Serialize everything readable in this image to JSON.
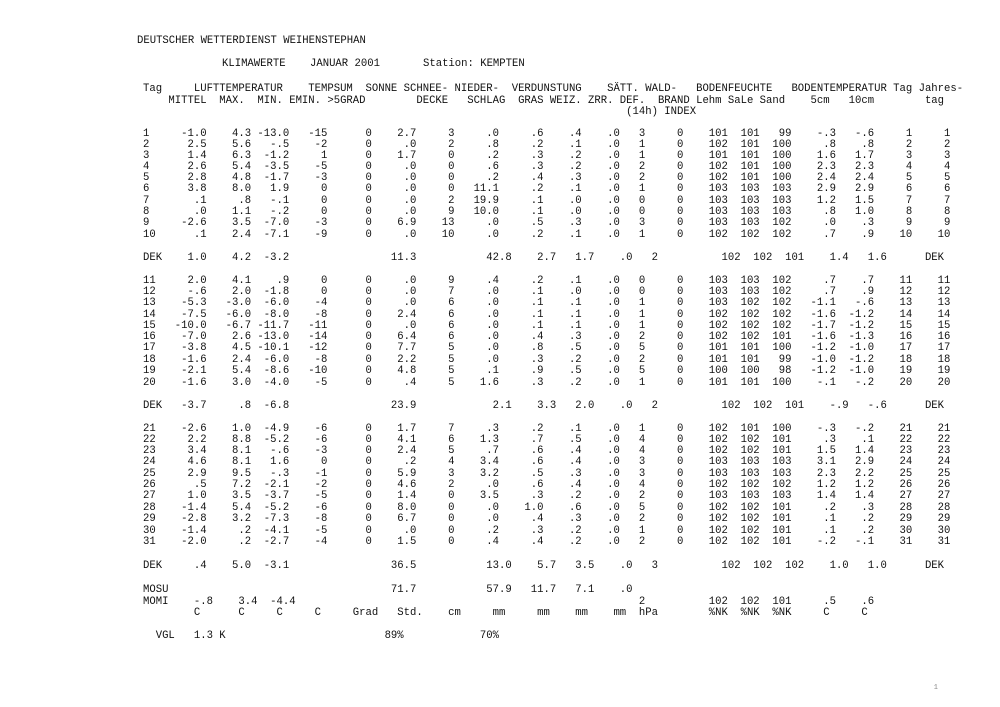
{
  "header": {
    "title": "DEUTSCHER WETTERDIENST WEIHENSTEPHAN",
    "subtitle": "KLIMAWERTE",
    "month": "JANUAR 2001",
    "station": "Station: KEMPTEN"
  },
  "table": {
    "header_rows": [
      "Tag     LUFTTEMPERATUR    TEMPSUM  SONNE SCHNEE- NIEDER-  VERDUNSTUNG    SÄTT. WALD-   BODENFEUCHTE   BODENTEMPERATUR Tag Jahres-",
      "    MITTEL  MAX.  MIN. EMIN. >5GRAD        DECKE   SCHLAG  GRAS WEIZ. ZRR. DEF.  BRAND Lehm SaLe Sand    5cm   10cm        tag",
      "                                                                            (14h) INDEX"
    ],
    "dekade1": [
      "1     -1.0    4.3 -13.0   -15      0    2.7     3     .0     .6    .4    .0   3     0    101  101   99    -.3   -.6     1     1",
      "2      2.5    5.6   -.5    -2      0     .0     2     .8     .2    .1    .0   1     0    102  101  100     .8    .8     2     2",
      "3      1.4    6.3  -1.2     1      0    1.7     0     .2     .3    .2    .0   1     0    101  101  100    1.6   1.7     3     3",
      "4      2.6    5.4  -3.5    -5      0     .0     0     .6     .3    .2    .0   2     0    102  101  100    2.3   2.3     4     4",
      "5      2.8    4.8  -1.7    -3      0     .0     0     .2     .4    .3    .0   2     0    102  101  100    2.4   2.4     5     5",
      "6      3.8    8.0   1.9     0      0     .0     0   11.1     .2    .1    .0   1     0    103  103  103    2.9   2.9     6     6",
      "7       .1     .8   -.1     0      0     .0     2   19.9     .1    .0    .0   0     0    103  103  103    1.2   1.5     7     7",
      "8       .0    1.1   -.2     0      0     .0     9   10.0     .1    .0    .0   0     0    103  103  103     .8   1.0     8     8",
      "9     -2.6    3.5  -7.0    -3      0    6.9    13     .0     .5    .3    .0   3     0    103  103  102     .0    .3     9     9",
      "10      .1    2.4  -7.1    -9      0     .0    10     .0     .2    .1    .0   1     0    102  102  102     .7    .9    10    10"
    ],
    "dek1": "DEK    1.0    4.2  -3.2                11.3           42.8    2.7   1.7    .0   2          102  102  101    1.4   1.6      DEK",
    "dekade2": [
      "11     2.0    4.1    .9     0      0     .0     9     .4     .2    .1    .0   0     0    103  103  102     .7    .7    11    11",
      "12     -.6    2.0  -1.8     0      0     .0     7     .0     .1    .0    .0   0     0    103  103  102     .7    .9    12    12",
      "13    -5.3   -3.0  -6.0    -4      0     .0     6     .0     .1    .1    .0   1     0    103  102  102   -1.1   -.6    13    13",
      "14    -7.5   -6.0  -8.0    -8      0    2.4     6     .0     .1    .1    .0   1     0    102  102  102   -1.6  -1.2    14    14",
      "15   -10.0   -6.7 -11.7   -11      0     .0     6     .0     .1    .1    .0   1     0    102  102  102   -1.7  -1.2    15    15",
      "16    -7.0    2.6 -13.0   -14      0    6.4     6     .0     .4    .3    .0   2     0    102  102  101   -1.6  -1.3    16    16",
      "17    -3.8    4.5 -10.1   -12      0    7.7     5     .0     .8    .5    .0   5     0    101  101  100   -1.2  -1.0    17    17",
      "18    -1.6    2.4  -6.0    -8      0    2.2     5     .0     .3    .2    .0   2     0    101  101   99   -1.0  -1.2    18    18",
      "19    -2.1    5.4  -8.6   -10      0    4.8     5     .1     .9    .5    .0   5     0    100  100   98   -1.2  -1.0    19    19",
      "20    -1.6    3.0  -4.0    -5      0     .4     5    1.6     .3    .2    .0   1     0    101  101  100    -.1   -.2    20    20"
    ],
    "dek2": "DEK   -3.7     .8  -6.8                23.9            2.1    3.3   2.0    .0   2          102  102  101    -.9   -.6      DEK",
    "dekade3": [
      "21    -2.6    1.0  -4.9    -6      0    1.7     7     .3     .2    .1    .0   1     0    102  101  100    -.3   -.2    21    21",
      "22     2.2    8.8  -5.2    -6      0    4.1     6    1.3     .7    .5    .0   4     0    102  102  101     .3    .1    22    22",
      "23     3.4    8.1   -.6    -3      0    2.4     5     .7     .6    .4    .0   4     0    102  102  101    1.5   1.4    23    23",
      "24     4.6    8.1   1.6     0      0     .2     4    3.4     .6    .4    .0   3     0    103  103  103    3.1   2.9    24    24",
      "25     2.9    9.5   -.3    -1      0    5.9     3    3.2     .5    .3    .0   3     0    103  103  103    2.3   2.2    25    25",
      "26      .5    7.2  -2.1    -2      0    4.6     2     .0     .6    .4    .0   4     0    102  102  102    1.2   1.2    26    26",
      "27     1.0    3.5  -3.7    -5      0    1.4     0    3.5     .3    .2    .0   2     0    103  103  103    1.4   1.4    27    27",
      "28    -1.4    5.4  -5.2    -6      0    8.0     0     .0    1.0    .6    .0   5     0    102  102  101     .2    .3    28    28",
      "29    -2.8    3.2  -7.3    -8      0    6.7     0     .0     .4    .3    .0   2     0    102  102  101     .1    .2    29    29",
      "30    -1.4     .2  -4.1    -5      0     .0     0     .2     .3    .2    .0   1     0    102  102  101     .1    .2    30    30",
      "31    -2.0     .2  -2.7    -4      0    1.5     0     .4     .4    .2    .0   2     0    102  102  101    -.2   -.1    31    31"
    ],
    "dek3": "DEK     .4    5.0  -3.1                36.5           13.0    5.7   3.5    .0   3          102  102  102    1.0   1.0      DEK",
    "mosu": "MOSU                                   71.7           57.9   11.7   7.1    .0",
    "momi": "MOMI    -.8    3.4  -4.4                                                      2          102  102  101     .5    .6",
    "units": "        C      C     C     C     Grad   Std.    cm     mm     mm    mm    mm  hPa        %NK  %NK  %NK     C     C",
    "vgl": "  VGL   1.3 K                         89%            70%"
  }
}
